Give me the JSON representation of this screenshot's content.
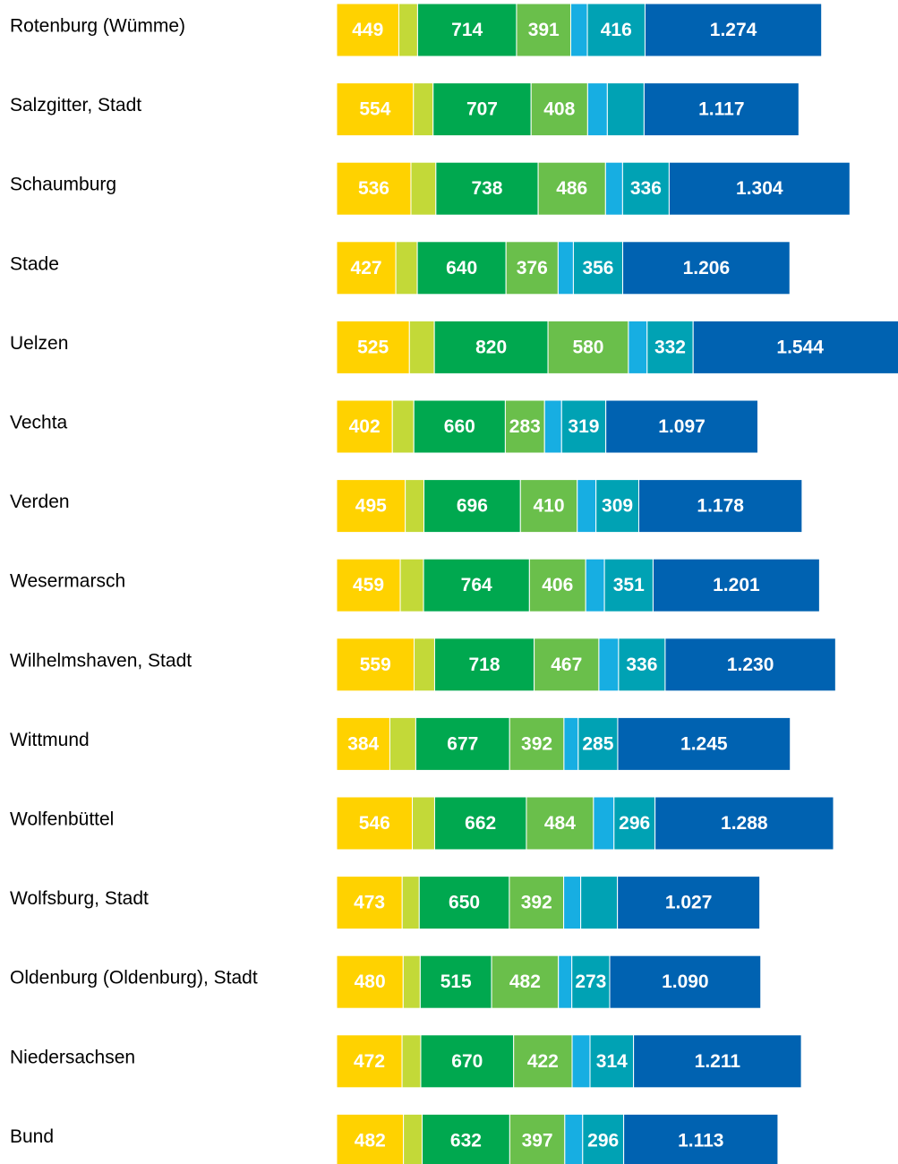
{
  "chart_data": {
    "type": "stacked-barh",
    "categories": [
      "Rotenburg (Wümme)",
      "Salzgitter, Stadt",
      "Schaumburg",
      "Stade",
      "Uelzen",
      "Vechta",
      "Verden",
      "Wesermarsch",
      "Wilhelmshaven, Stadt",
      "Wittmund",
      "Wolfenbüttel",
      "Wolfsburg, Stadt",
      "Oldenburg (Oldenburg), Stadt",
      "Niedersachsen",
      "Bund"
    ],
    "xlim": [
      0,
      4050
    ],
    "series": [
      {
        "color": "#ffd200",
        "values": [
          449,
          554,
          536,
          427,
          525,
          402,
          495,
          459,
          559,
          384,
          546,
          473,
          480,
          472,
          482
        ],
        "value_labels": [
          "449",
          "554",
          "536",
          "427",
          "525",
          "402",
          "495",
          "459",
          "559",
          "384",
          "546",
          "473",
          "480",
          "472",
          "482"
        ]
      },
      {
        "color": "#c3d938",
        "values": [
          135,
          142,
          180,
          155,
          180,
          155,
          135,
          168,
          148,
          187,
          161,
          123,
          123,
          135,
          135
        ],
        "value_labels": [
          null,
          null,
          null,
          null,
          null,
          null,
          null,
          null,
          null,
          null,
          null,
          null,
          null,
          null,
          null
        ]
      },
      {
        "color": "#00a84f",
        "values": [
          714,
          707,
          738,
          640,
          820,
          660,
          696,
          764,
          718,
          677,
          662,
          650,
          515,
          670,
          632
        ],
        "value_labels": [
          "714",
          "707",
          "738",
          "640",
          "820",
          "660",
          "696",
          "764",
          "718",
          "677",
          "662",
          "650",
          "515",
          "670",
          "632"
        ]
      },
      {
        "color": "#6abf4b",
        "values": [
          391,
          408,
          486,
          376,
          580,
          283,
          410,
          406,
          467,
          392,
          484,
          392,
          482,
          422,
          397
        ],
        "value_labels": [
          "391",
          "408",
          "486",
          "376",
          "580",
          "283",
          "410",
          "406",
          "467",
          "392",
          "484",
          "392",
          "482",
          "422",
          "397"
        ]
      },
      {
        "color": "#17aee2",
        "values": [
          120,
          142,
          123,
          110,
          135,
          123,
          135,
          135,
          142,
          103,
          148,
          123,
          97,
          129,
          129
        ],
        "value_labels": [
          null,
          null,
          null,
          null,
          null,
          null,
          null,
          null,
          null,
          null,
          null,
          null,
          null,
          null,
          null
        ]
      },
      {
        "color": "#00a2b4",
        "values": [
          416,
          265,
          336,
          356,
          332,
          319,
          309,
          351,
          336,
          285,
          296,
          265,
          273,
          314,
          296
        ],
        "value_labels": [
          "416",
          null,
          "336",
          "356",
          "332",
          "319",
          "309",
          "351",
          "336",
          "285",
          "296",
          null,
          "273",
          "314",
          "296"
        ]
      },
      {
        "color": "#0062b1",
        "values": [
          1274,
          1117,
          1304,
          1206,
          1544,
          1097,
          1178,
          1201,
          1230,
          1245,
          1288,
          1027,
          1090,
          1211,
          1113
        ],
        "value_labels": [
          "1.274",
          "1.117",
          "1.304",
          "1.206",
          "1.544",
          "1.097",
          "1.178",
          "1.201",
          "1.230",
          "1.245",
          "1.288",
          "1.027",
          "1.090",
          "1.211",
          "1.113"
        ]
      }
    ]
  }
}
